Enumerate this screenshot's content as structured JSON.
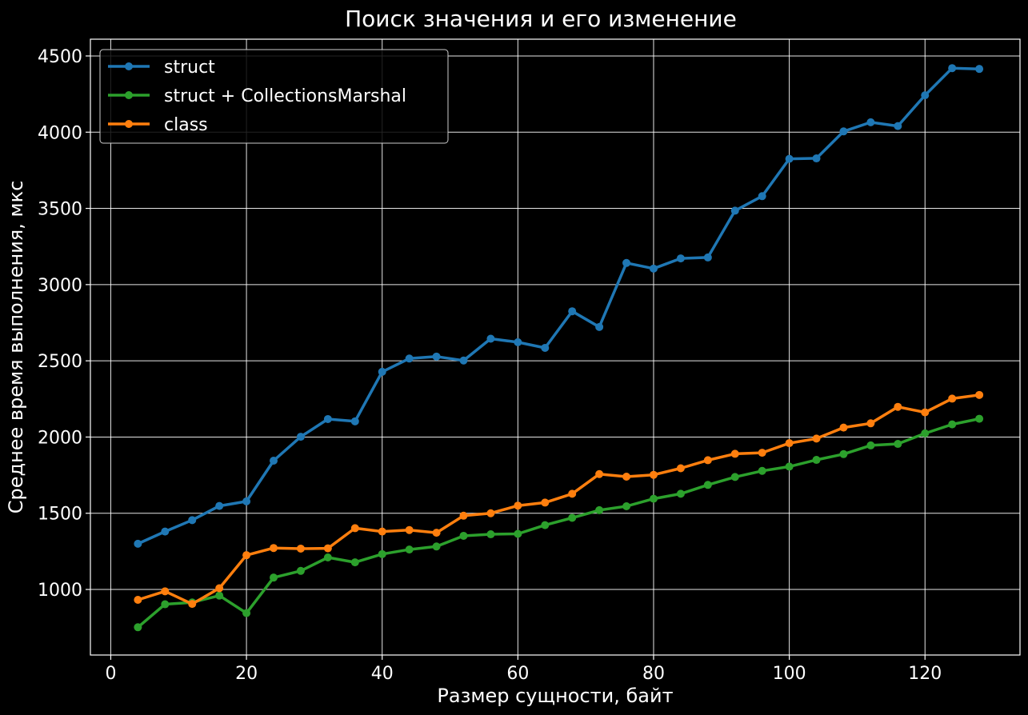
{
  "chart_data": {
    "type": "line",
    "title": "Поиск значения и его изменение",
    "xlabel": "Размер сущности, байт",
    "ylabel": "Среднее время выполнения, мкс",
    "xlim": [
      -3,
      134
    ],
    "ylim": [
      570,
      4610
    ],
    "xticks": [
      0,
      20,
      40,
      60,
      80,
      100,
      120
    ],
    "yticks": [
      1000,
      1500,
      2000,
      2500,
      3000,
      3500,
      4000,
      4500
    ],
    "grid": true,
    "legend_position": "top-left",
    "background": "#000000",
    "x": [
      4,
      8,
      12,
      16,
      20,
      24,
      28,
      32,
      36,
      40,
      44,
      48,
      52,
      56,
      60,
      64,
      68,
      72,
      76,
      80,
      84,
      88,
      92,
      96,
      100,
      104,
      108,
      112,
      116,
      120,
      124,
      128
    ],
    "series": [
      {
        "name": "struct",
        "color": "#1f77b4",
        "values": [
          1300,
          1380,
          1455,
          1548,
          1578,
          1845,
          2002,
          2118,
          2103,
          2428,
          2515,
          2528,
          2502,
          2645,
          2622,
          2585,
          2825,
          2722,
          3142,
          3105,
          3172,
          3178,
          3485,
          3580,
          3825,
          3828,
          4005,
          4065,
          4040,
          4242,
          4420,
          4415
        ]
      },
      {
        "name": "struct + CollectionsMarshal",
        "color": "#2ca02c",
        "values": [
          752,
          903,
          915,
          960,
          845,
          1078,
          1122,
          1210,
          1178,
          1232,
          1262,
          1282,
          1352,
          1362,
          1365,
          1422,
          1470,
          1520,
          1546,
          1595,
          1628,
          1686,
          1738,
          1778,
          1806,
          1850,
          1888,
          1945,
          1955,
          2024,
          2083,
          2120
        ]
      },
      {
        "name": "class",
        "color": "#ff7f0e",
        "values": [
          932,
          988,
          905,
          1008,
          1225,
          1272,
          1268,
          1270,
          1402,
          1380,
          1390,
          1372,
          1484,
          1500,
          1550,
          1570,
          1628,
          1757,
          1740,
          1752,
          1795,
          1848,
          1890,
          1897,
          1960,
          1990,
          2062,
          2090,
          2198,
          2162,
          2252,
          2276
        ]
      }
    ]
  }
}
